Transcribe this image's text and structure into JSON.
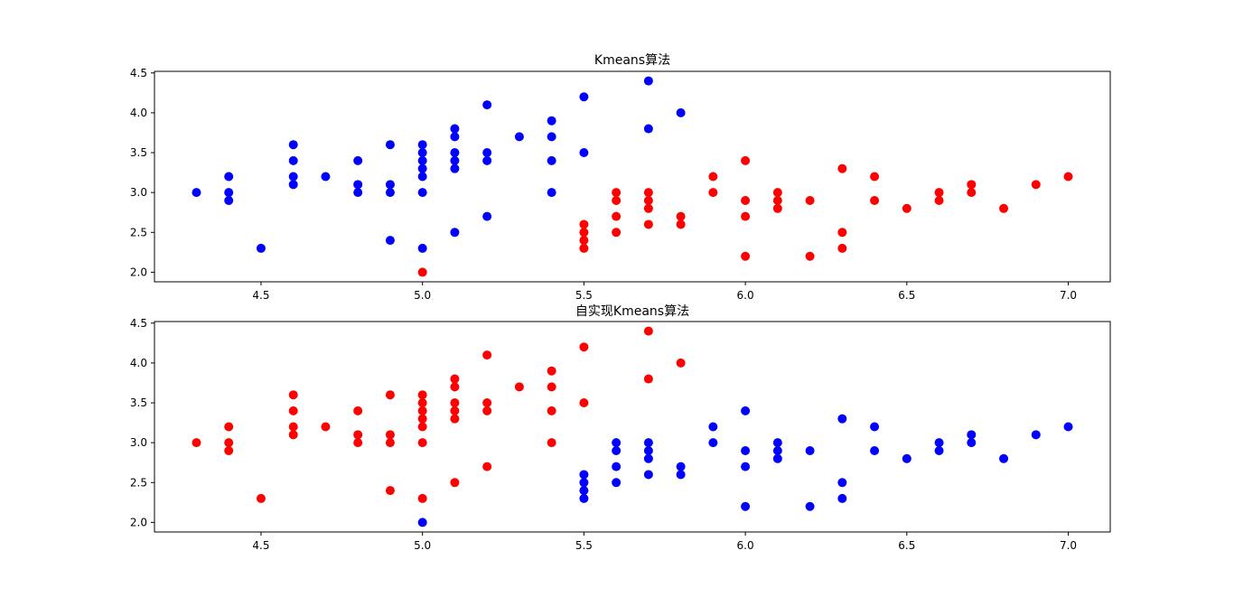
{
  "chart_data": [
    {
      "type": "scatter",
      "title": "Kmeans算法",
      "xlabel": "",
      "ylabel": "",
      "xlim": [
        4.17,
        7.13
      ],
      "ylim": [
        1.88,
        4.52
      ],
      "xticks": [
        "4.5",
        "5.0",
        "5.5",
        "6.0",
        "6.5",
        "7.0"
      ],
      "yticks": [
        "2.0",
        "2.5",
        "3.0",
        "3.5",
        "4.0",
        "4.5"
      ],
      "grid": false,
      "series": [
        {
          "color": "#0000ff",
          "points": [
            [
              4.3,
              3.0
            ],
            [
              4.4,
              3.2
            ],
            [
              4.4,
              3.0
            ],
            [
              4.4,
              2.9
            ],
            [
              4.5,
              2.3
            ],
            [
              4.6,
              3.6
            ],
            [
              4.6,
              3.4
            ],
            [
              4.6,
              3.2
            ],
            [
              4.6,
              3.1
            ],
            [
              4.7,
              3.2
            ],
            [
              4.8,
              3.4
            ],
            [
              4.8,
              3.1
            ],
            [
              4.8,
              3.0
            ],
            [
              4.9,
              3.6
            ],
            [
              4.9,
              3.1
            ],
            [
              4.9,
              3.0
            ],
            [
              4.9,
              2.4
            ],
            [
              5.0,
              3.6
            ],
            [
              5.0,
              3.5
            ],
            [
              5.0,
              3.4
            ],
            [
              5.0,
              3.3
            ],
            [
              5.0,
              3.2
            ],
            [
              5.0,
              3.0
            ],
            [
              5.0,
              2.3
            ],
            [
              5.1,
              3.8
            ],
            [
              5.1,
              3.7
            ],
            [
              5.1,
              3.5
            ],
            [
              5.1,
              3.4
            ],
            [
              5.1,
              3.3
            ],
            [
              5.1,
              2.5
            ],
            [
              5.2,
              4.1
            ],
            [
              5.2,
              3.5
            ],
            [
              5.2,
              3.4
            ],
            [
              5.2,
              2.7
            ],
            [
              5.3,
              3.7
            ],
            [
              5.4,
              3.9
            ],
            [
              5.4,
              3.7
            ],
            [
              5.4,
              3.4
            ],
            [
              5.4,
              3.0
            ],
            [
              5.5,
              4.2
            ],
            [
              5.5,
              3.5
            ],
            [
              5.7,
              4.4
            ],
            [
              5.7,
              3.8
            ],
            [
              5.8,
              4.0
            ]
          ]
        },
        {
          "color": "#ff0000",
          "points": [
            [
              5.0,
              2.0
            ],
            [
              5.5,
              2.6
            ],
            [
              5.5,
              2.5
            ],
            [
              5.5,
              2.4
            ],
            [
              5.5,
              2.3
            ],
            [
              5.6,
              3.0
            ],
            [
              5.6,
              2.9
            ],
            [
              5.6,
              2.7
            ],
            [
              5.6,
              2.5
            ],
            [
              5.7,
              3.0
            ],
            [
              5.7,
              2.9
            ],
            [
              5.7,
              2.8
            ],
            [
              5.7,
              2.6
            ],
            [
              5.8,
              2.7
            ],
            [
              5.8,
              2.6
            ],
            [
              5.9,
              3.2
            ],
            [
              5.9,
              3.0
            ],
            [
              6.0,
              3.4
            ],
            [
              6.0,
              2.9
            ],
            [
              6.0,
              2.7
            ],
            [
              6.0,
              2.2
            ],
            [
              6.1,
              3.0
            ],
            [
              6.1,
              2.9
            ],
            [
              6.1,
              2.8
            ],
            [
              6.2,
              2.9
            ],
            [
              6.2,
              2.2
            ],
            [
              6.3,
              3.3
            ],
            [
              6.3,
              2.5
            ],
            [
              6.3,
              2.3
            ],
            [
              6.4,
              3.2
            ],
            [
              6.4,
              2.9
            ],
            [
              6.5,
              2.8
            ],
            [
              6.6,
              3.0
            ],
            [
              6.6,
              2.9
            ],
            [
              6.7,
              3.1
            ],
            [
              6.7,
              3.0
            ],
            [
              6.8,
              2.8
            ],
            [
              6.9,
              3.1
            ],
            [
              7.0,
              3.2
            ]
          ]
        }
      ]
    },
    {
      "type": "scatter",
      "title": "自实现Kmeans算法",
      "xlabel": "",
      "ylabel": "",
      "xlim": [
        4.17,
        7.13
      ],
      "ylim": [
        1.88,
        4.52
      ],
      "xticks": [
        "4.5",
        "5.0",
        "5.5",
        "6.0",
        "6.5",
        "7.0"
      ],
      "yticks": [
        "2.0",
        "2.5",
        "3.0",
        "3.5",
        "4.0",
        "4.5"
      ],
      "grid": false,
      "series": [
        {
          "color": "#ff0000",
          "points": [
            [
              4.3,
              3.0
            ],
            [
              4.4,
              3.2
            ],
            [
              4.4,
              3.0
            ],
            [
              4.4,
              2.9
            ],
            [
              4.5,
              2.3
            ],
            [
              4.6,
              3.6
            ],
            [
              4.6,
              3.4
            ],
            [
              4.6,
              3.2
            ],
            [
              4.6,
              3.1
            ],
            [
              4.7,
              3.2
            ],
            [
              4.8,
              3.4
            ],
            [
              4.8,
              3.1
            ],
            [
              4.8,
              3.0
            ],
            [
              4.9,
              3.6
            ],
            [
              4.9,
              3.1
            ],
            [
              4.9,
              3.0
            ],
            [
              4.9,
              2.4
            ],
            [
              5.0,
              3.6
            ],
            [
              5.0,
              3.5
            ],
            [
              5.0,
              3.4
            ],
            [
              5.0,
              3.3
            ],
            [
              5.0,
              3.2
            ],
            [
              5.0,
              3.0
            ],
            [
              5.0,
              2.3
            ],
            [
              5.1,
              3.8
            ],
            [
              5.1,
              3.7
            ],
            [
              5.1,
              3.5
            ],
            [
              5.1,
              3.4
            ],
            [
              5.1,
              3.3
            ],
            [
              5.1,
              2.5
            ],
            [
              5.2,
              4.1
            ],
            [
              5.2,
              3.5
            ],
            [
              5.2,
              3.4
            ],
            [
              5.2,
              2.7
            ],
            [
              5.3,
              3.7
            ],
            [
              5.4,
              3.9
            ],
            [
              5.4,
              3.7
            ],
            [
              5.4,
              3.4
            ],
            [
              5.4,
              3.0
            ],
            [
              5.5,
              4.2
            ],
            [
              5.5,
              3.5
            ],
            [
              5.7,
              4.4
            ],
            [
              5.7,
              3.8
            ],
            [
              5.8,
              4.0
            ]
          ]
        },
        {
          "color": "#0000ff",
          "points": [
            [
              5.0,
              2.0
            ],
            [
              5.5,
              2.6
            ],
            [
              5.5,
              2.5
            ],
            [
              5.5,
              2.4
            ],
            [
              5.5,
              2.3
            ],
            [
              5.6,
              3.0
            ],
            [
              5.6,
              2.9
            ],
            [
              5.6,
              2.7
            ],
            [
              5.6,
              2.5
            ],
            [
              5.7,
              3.0
            ],
            [
              5.7,
              2.9
            ],
            [
              5.7,
              2.8
            ],
            [
              5.7,
              2.6
            ],
            [
              5.8,
              2.7
            ],
            [
              5.8,
              2.6
            ],
            [
              5.9,
              3.2
            ],
            [
              5.9,
              3.0
            ],
            [
              6.0,
              3.4
            ],
            [
              6.0,
              2.9
            ],
            [
              6.0,
              2.7
            ],
            [
              6.0,
              2.2
            ],
            [
              6.1,
              3.0
            ],
            [
              6.1,
              2.9
            ],
            [
              6.1,
              2.8
            ],
            [
              6.2,
              2.9
            ],
            [
              6.2,
              2.2
            ],
            [
              6.3,
              3.3
            ],
            [
              6.3,
              2.5
            ],
            [
              6.3,
              2.3
            ],
            [
              6.4,
              3.2
            ],
            [
              6.4,
              2.9
            ],
            [
              6.5,
              2.8
            ],
            [
              6.6,
              3.0
            ],
            [
              6.6,
              2.9
            ],
            [
              6.7,
              3.1
            ],
            [
              6.7,
              3.0
            ],
            [
              6.8,
              2.8
            ],
            [
              6.9,
              3.1
            ],
            [
              7.0,
              3.2
            ]
          ]
        }
      ]
    }
  ]
}
